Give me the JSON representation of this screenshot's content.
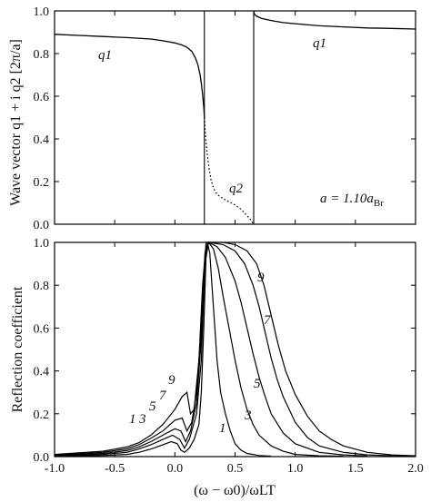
{
  "chart_data": [
    {
      "type": "line",
      "ylabel": "Wave vector  q1 + i q2 [2π/a]",
      "ylim": [
        0,
        1.0
      ],
      "xlim": [
        -1.0,
        2.0
      ],
      "yticks": [
        "0.0",
        "0.2",
        "0.4",
        "0.6",
        "0.8",
        "1.0"
      ],
      "annotation": "a = 1.10a",
      "annotation_sub": "Br",
      "series": [
        {
          "name": "q1",
          "style": "solid",
          "points": [
            [
              -1.0,
              0.89
            ],
            [
              -0.8,
              0.885
            ],
            [
              -0.6,
              0.88
            ],
            [
              -0.4,
              0.875
            ],
            [
              -0.2,
              0.868
            ],
            [
              -0.1,
              0.86
            ],
            [
              0.0,
              0.85
            ],
            [
              0.06,
              0.84
            ],
            [
              0.1,
              0.83
            ],
            [
              0.14,
              0.81
            ],
            [
              0.17,
              0.78
            ],
            [
              0.19,
              0.75
            ],
            [
              0.21,
              0.7
            ],
            [
              0.22,
              0.66
            ],
            [
              0.23,
              0.61
            ],
            [
              0.24,
              0.55
            ],
            [
              0.245,
              0.5
            ]
          ]
        },
        {
          "name": "q1",
          "style": "solid",
          "points": [
            [
              0.655,
              1.0
            ],
            [
              0.66,
              0.985
            ],
            [
              0.68,
              0.975
            ],
            [
              0.72,
              0.965
            ],
            [
              0.8,
              0.955
            ],
            [
              0.9,
              0.945
            ],
            [
              1.0,
              0.94
            ],
            [
              1.2,
              0.93
            ],
            [
              1.4,
              0.925
            ],
            [
              1.6,
              0.92
            ],
            [
              1.8,
              0.918
            ],
            [
              2.0,
              0.915
            ]
          ]
        },
        {
          "name": "q2",
          "style": "dotted",
          "points": [
            [
              0.245,
              0.5
            ],
            [
              0.25,
              0.45
            ],
            [
              0.26,
              0.38
            ],
            [
              0.27,
              0.32
            ],
            [
              0.285,
              0.26
            ],
            [
              0.3,
              0.21
            ],
            [
              0.32,
              0.17
            ],
            [
              0.35,
              0.14
            ],
            [
              0.4,
              0.12
            ],
            [
              0.45,
              0.105
            ],
            [
              0.5,
              0.09
            ],
            [
              0.55,
              0.07
            ],
            [
              0.6,
              0.04
            ],
            [
              0.63,
              0.02
            ],
            [
              0.655,
              0.0
            ]
          ]
        }
      ],
      "series_labels": [
        "q1",
        "q2",
        "q1"
      ],
      "vertical_lines_x": [
        0.245,
        0.655
      ]
    },
    {
      "type": "line",
      "xlabel": "(ω − ω0)/ωLT",
      "ylabel": "Reflection coefficient",
      "xlim": [
        -1.0,
        2.0
      ],
      "ylim": [
        0,
        1.0
      ],
      "xticks": [
        "-1.0",
        "-0.5",
        "0.0",
        "0.5",
        "1.0",
        "1.5",
        "2.0"
      ],
      "yticks": [
        "0.0",
        "0.2",
        "0.4",
        "0.6",
        "0.8",
        "1.0"
      ],
      "series": [
        {
          "name": "1",
          "points": [
            [
              -1.0,
              0.002
            ],
            [
              -0.6,
              0.005
            ],
            [
              -0.4,
              0.01
            ],
            [
              -0.3,
              0.02
            ],
            [
              -0.2,
              0.035
            ],
            [
              -0.1,
              0.055
            ],
            [
              -0.03,
              0.07
            ],
            [
              0.02,
              0.06
            ],
            [
              0.05,
              0.03
            ],
            [
              0.08,
              0.02
            ],
            [
              0.12,
              0.04
            ],
            [
              0.16,
              0.08
            ],
            [
              0.2,
              0.15
            ],
            [
              0.22,
              0.3
            ],
            [
              0.24,
              0.6
            ],
            [
              0.26,
              0.95
            ],
            [
              0.27,
              1.0
            ],
            [
              0.29,
              0.95
            ],
            [
              0.32,
              0.7
            ],
            [
              0.35,
              0.45
            ],
            [
              0.38,
              0.3
            ],
            [
              0.42,
              0.2
            ],
            [
              0.46,
              0.12
            ],
            [
              0.5,
              0.06
            ],
            [
              0.55,
              0.03
            ],
            [
              0.6,
              0.015
            ],
            [
              0.7,
              0.005
            ],
            [
              0.8,
              0.002
            ]
          ]
        },
        {
          "name": "3",
          "points": [
            [
              -1.0,
              0.004
            ],
            [
              -0.6,
              0.01
            ],
            [
              -0.4,
              0.02
            ],
            [
              -0.3,
              0.035
            ],
            [
              -0.2,
              0.055
            ],
            [
              -0.1,
              0.08
            ],
            [
              -0.02,
              0.1
            ],
            [
              0.04,
              0.08
            ],
            [
              0.08,
              0.04
            ],
            [
              0.12,
              0.08
            ],
            [
              0.18,
              0.2
            ],
            [
              0.22,
              0.45
            ],
            [
              0.25,
              0.9
            ],
            [
              0.28,
              1.0
            ],
            [
              0.32,
              0.97
            ],
            [
              0.36,
              0.88
            ],
            [
              0.4,
              0.75
            ],
            [
              0.45,
              0.6
            ],
            [
              0.5,
              0.45
            ],
            [
              0.55,
              0.32
            ],
            [
              0.6,
              0.22
            ],
            [
              0.65,
              0.15
            ],
            [
              0.7,
              0.1
            ],
            [
              0.8,
              0.05
            ],
            [
              0.9,
              0.025
            ],
            [
              1.0,
              0.01
            ],
            [
              1.2,
              0.004
            ],
            [
              1.4,
              0.002
            ]
          ]
        },
        {
          "name": "5",
          "points": [
            [
              -1.0,
              0.006
            ],
            [
              -0.6,
              0.015
            ],
            [
              -0.4,
              0.028
            ],
            [
              -0.3,
              0.045
            ],
            [
              -0.2,
              0.07
            ],
            [
              -0.1,
              0.1
            ],
            [
              0.0,
              0.13
            ],
            [
              0.05,
              0.12
            ],
            [
              0.09,
              0.07
            ],
            [
              0.13,
              0.12
            ],
            [
              0.18,
              0.25
            ],
            [
              0.22,
              0.55
            ],
            [
              0.25,
              0.92
            ],
            [
              0.28,
              1.0
            ],
            [
              0.35,
              0.98
            ],
            [
              0.42,
              0.93
            ],
            [
              0.5,
              0.82
            ],
            [
              0.55,
              0.72
            ],
            [
              0.6,
              0.6
            ],
            [
              0.65,
              0.48
            ],
            [
              0.7,
              0.37
            ],
            [
              0.75,
              0.28
            ],
            [
              0.8,
              0.2
            ],
            [
              0.9,
              0.11
            ],
            [
              1.0,
              0.06
            ],
            [
              1.2,
              0.02
            ],
            [
              1.4,
              0.008
            ],
            [
              1.6,
              0.003
            ]
          ]
        },
        {
          "name": "7",
          "points": [
            [
              -1.0,
              0.008
            ],
            [
              -0.6,
              0.02
            ],
            [
              -0.4,
              0.036
            ],
            [
              -0.3,
              0.055
            ],
            [
              -0.2,
              0.085
            ],
            [
              -0.1,
              0.12
            ],
            [
              0.0,
              0.17
            ],
            [
              0.06,
              0.18
            ],
            [
              0.1,
              0.12
            ],
            [
              0.14,
              0.16
            ],
            [
              0.18,
              0.3
            ],
            [
              0.22,
              0.6
            ],
            [
              0.25,
              0.95
            ],
            [
              0.28,
              1.0
            ],
            [
              0.4,
              0.99
            ],
            [
              0.5,
              0.96
            ],
            [
              0.58,
              0.9
            ],
            [
              0.65,
              0.8
            ],
            [
              0.7,
              0.7
            ],
            [
              0.75,
              0.58
            ],
            [
              0.8,
              0.46
            ],
            [
              0.85,
              0.36
            ],
            [
              0.9,
              0.28
            ],
            [
              1.0,
              0.16
            ],
            [
              1.1,
              0.09
            ],
            [
              1.2,
              0.05
            ],
            [
              1.4,
              0.02
            ],
            [
              1.6,
              0.008
            ],
            [
              1.8,
              0.004
            ],
            [
              2.0,
              0.002
            ]
          ]
        },
        {
          "name": "9",
          "points": [
            [
              -1.0,
              0.01
            ],
            [
              -0.6,
              0.025
            ],
            [
              -0.4,
              0.045
            ],
            [
              -0.3,
              0.065
            ],
            [
              -0.2,
              0.1
            ],
            [
              -0.1,
              0.15
            ],
            [
              0.0,
              0.22
            ],
            [
              0.06,
              0.28
            ],
            [
              0.1,
              0.3
            ],
            [
              0.13,
              0.2
            ],
            [
              0.16,
              0.22
            ],
            [
              0.2,
              0.45
            ],
            [
              0.23,
              0.8
            ],
            [
              0.26,
              1.0
            ],
            [
              0.4,
              1.0
            ],
            [
              0.5,
              0.99
            ],
            [
              0.6,
              0.96
            ],
            [
              0.68,
              0.9
            ],
            [
              0.74,
              0.8
            ],
            [
              0.8,
              0.66
            ],
            [
              0.86,
              0.52
            ],
            [
              0.92,
              0.4
            ],
            [
              1.0,
              0.29
            ],
            [
              1.1,
              0.19
            ],
            [
              1.2,
              0.12
            ],
            [
              1.3,
              0.08
            ],
            [
              1.4,
              0.05
            ],
            [
              1.6,
              0.02
            ],
            [
              1.8,
              0.008
            ],
            [
              2.0,
              0.004
            ]
          ]
        }
      ]
    }
  ]
}
